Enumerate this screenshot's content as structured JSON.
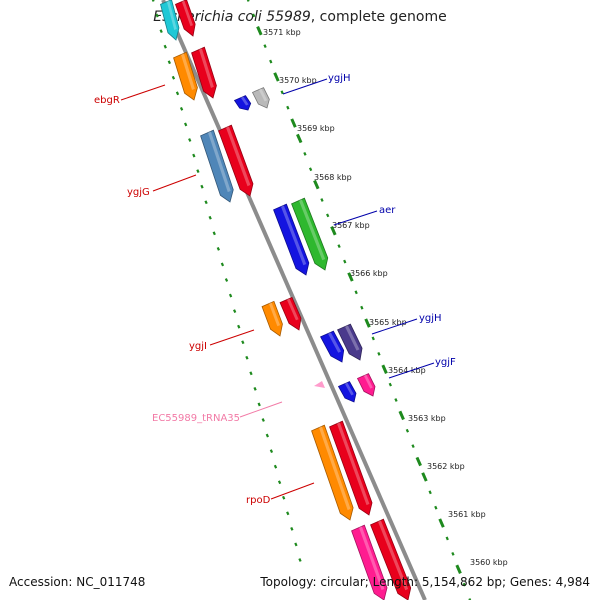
{
  "header": {
    "organism": "Escherichia coli 55989",
    "suffix": ", complete genome"
  },
  "footer": {
    "accession": "Accession: NC_011748",
    "summary": "Topology: circular; Length: 5,154,862 bp; Genes: 4,984"
  },
  "colors": {
    "backbone": "#8c8c8c",
    "tick": "#1e8a1e",
    "label_red": "#cc0000",
    "label_blue": "#0000aa",
    "label_pink": "#f27aa6"
  },
  "ticks": [
    {
      "label": "3571 kbp"
    },
    {
      "label": "3570 kbp"
    },
    {
      "label": "3569 kbp"
    },
    {
      "label": "3568 kbp"
    },
    {
      "label": "3567 kbp"
    },
    {
      "label": "3566 kbp"
    },
    {
      "label": "3565 kbp"
    },
    {
      "label": "3564 kbp"
    },
    {
      "label": "3563 kbp"
    },
    {
      "label": "3562 kbp"
    },
    {
      "label": "3561 kbp"
    },
    {
      "label": "3560 kbp"
    }
  ],
  "genes": [
    {
      "name": "ebgR",
      "strand": "minus",
      "color": "#cc0000"
    },
    {
      "name": "ygjG",
      "strand": "minus",
      "color": "#cc0000"
    },
    {
      "name": "ygjI",
      "strand": "minus",
      "color": "#cc0000"
    },
    {
      "name": "EC55989_tRNA35",
      "strand": "minus",
      "color": "#f27aa6"
    },
    {
      "name": "rpoD",
      "strand": "minus",
      "color": "#cc0000"
    },
    {
      "name": "ygjH",
      "strand": "plus",
      "color": "#0000aa"
    },
    {
      "name": "aer",
      "strand": "plus",
      "color": "#0000aa"
    },
    {
      "name": "ygjH",
      "strand": "plus",
      "color": "#0000aa"
    },
    {
      "name": "ygjF",
      "strand": "plus",
      "color": "#0000aa"
    }
  ],
  "feature_colors": {
    "cyan": "#1fc8d6",
    "red": "#e8001c",
    "orange": "#ff8a00",
    "steel": "#4f86b8",
    "blue": "#1414e0",
    "grey": "#b9b9b9",
    "green": "#2eb82e",
    "purple": "#4a3a8c",
    "pink": "#ff1c90",
    "trna": "#ff9ccc"
  }
}
